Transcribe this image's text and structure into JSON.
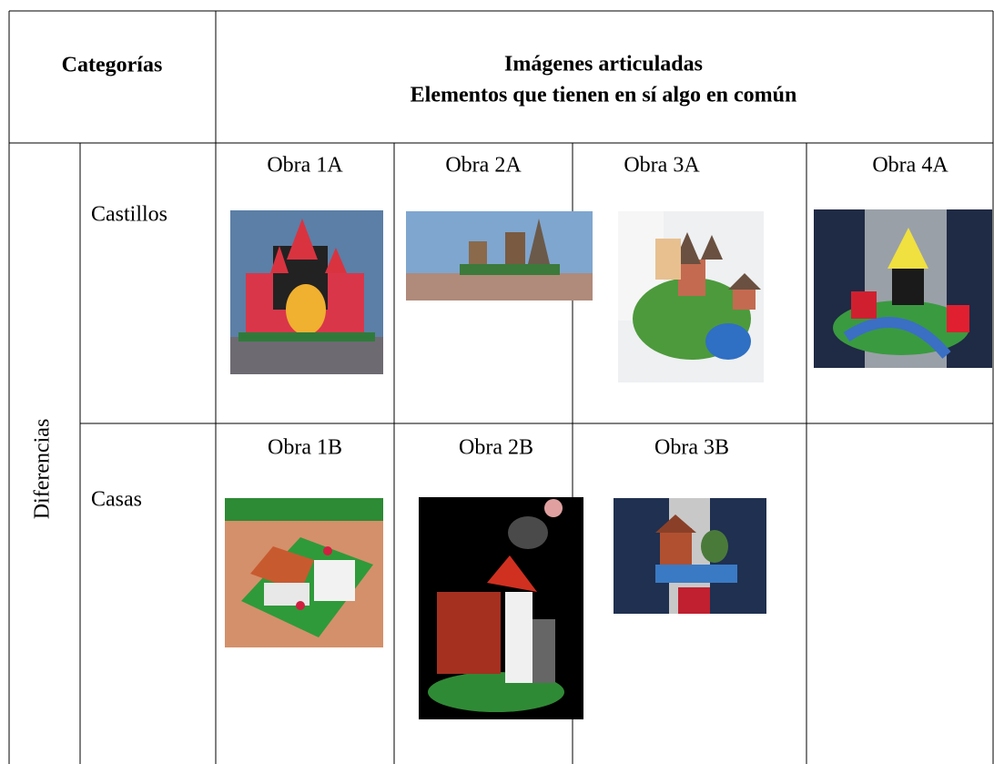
{
  "header": {
    "categories": "Categorías",
    "title_line1": "Imágenes articuladas",
    "title_line2": "Elementos que tienen en sí algo en común"
  },
  "group": "Diferencias",
  "rows": [
    {
      "label": "Castillos",
      "works": [
        "Obra 1A",
        "Obra 2A",
        "Obra 3A",
        "Obra 4A"
      ]
    },
    {
      "label": "Casas",
      "works": [
        "Obra 1B",
        "Obra 2B",
        "Obra 3B"
      ]
    }
  ]
}
